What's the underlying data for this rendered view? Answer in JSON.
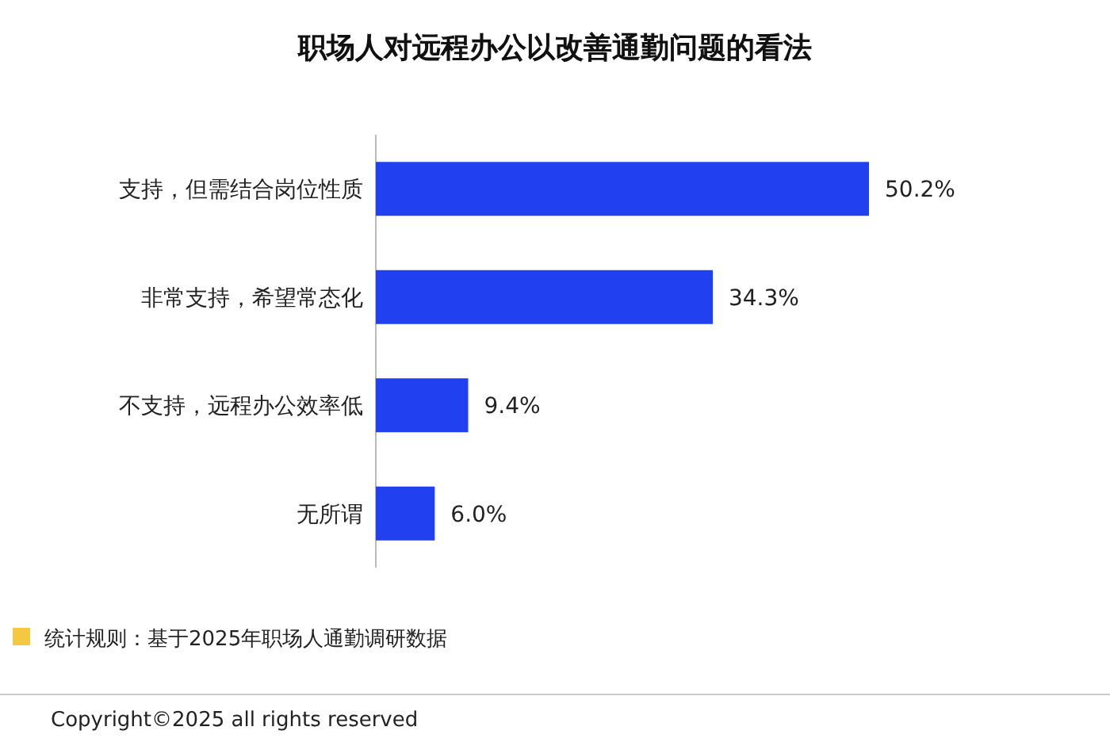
{
  "chart_data": {
    "type": "bar",
    "orientation": "horizontal",
    "title": "职场人对远程办公以改善通勤问题的看法",
    "categories": [
      "支持，但需结合岗位性质",
      "非常支持，希望常态化",
      "不支持，远程办公效率低",
      "无所谓"
    ],
    "values": [
      50.2,
      34.3,
      9.4,
      6.0
    ],
    "value_labels": [
      "50.2%",
      "34.3%",
      "9.4%",
      "6.0%"
    ],
    "color": "#2141f0",
    "annotations": [
      "统计规则：基于2025年职场人通勤调研数据",
      "Copyright©2025 all rights reserved"
    ]
  }
}
